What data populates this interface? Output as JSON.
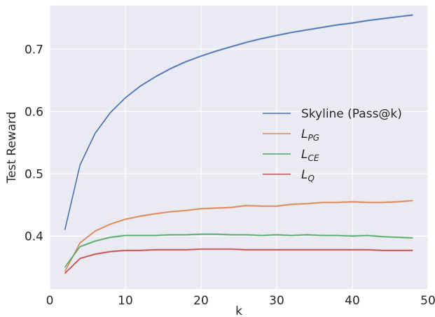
{
  "chart_data": {
    "type": "line",
    "xlabel": "k",
    "ylabel": "Test Reward",
    "xlim": [
      0,
      50
    ],
    "ylim": [
      0.315,
      0.77
    ],
    "x_ticks": [
      0,
      10,
      20,
      30,
      40,
      50
    ],
    "y_ticks": [
      0.4,
      0.5,
      0.6,
      0.7
    ],
    "x_tick_labels": [
      "0",
      "10",
      "20",
      "30",
      "40",
      "50"
    ],
    "y_tick_labels": [
      "0.4",
      "0.5",
      "0.6",
      "0.7"
    ],
    "grid": true,
    "background": "#eaeaf2",
    "legend_position": "center-right",
    "series": [
      {
        "name": "Skyline (Pass@k)",
        "color": "#4c72b0",
        "x": [
          2,
          4,
          6,
          8,
          10,
          12,
          14,
          16,
          18,
          20,
          22,
          24,
          26,
          28,
          30,
          32,
          34,
          36,
          38,
          40,
          42,
          44,
          46,
          48
        ],
        "values": [
          0.41,
          0.514,
          0.565,
          0.598,
          0.622,
          0.641,
          0.656,
          0.669,
          0.68,
          0.689,
          0.697,
          0.704,
          0.711,
          0.717,
          0.722,
          0.727,
          0.731,
          0.735,
          0.739,
          0.742,
          0.746,
          0.749,
          0.752,
          0.755
        ]
      },
      {
        "name_main": "L",
        "name_sub": "PG",
        "color": "#dd8452",
        "x": [
          2,
          4,
          6,
          8,
          10,
          12,
          14,
          16,
          18,
          20,
          22,
          24,
          26,
          28,
          30,
          32,
          34,
          36,
          38,
          40,
          42,
          44,
          46,
          48
        ],
        "values": [
          0.343,
          0.389,
          0.408,
          0.419,
          0.427,
          0.432,
          0.436,
          0.439,
          0.441,
          0.444,
          0.445,
          0.446,
          0.449,
          0.448,
          0.448,
          0.451,
          0.452,
          0.454,
          0.454,
          0.455,
          0.454,
          0.454,
          0.455,
          0.457
        ]
      },
      {
        "name_main": "L",
        "name_sub": "CE",
        "color": "#55a868",
        "x": [
          2,
          4,
          6,
          8,
          10,
          12,
          14,
          16,
          18,
          20,
          22,
          24,
          26,
          28,
          30,
          32,
          34,
          36,
          38,
          40,
          42,
          44,
          46,
          48
        ],
        "values": [
          0.35,
          0.383,
          0.392,
          0.398,
          0.401,
          0.401,
          0.401,
          0.402,
          0.402,
          0.403,
          0.403,
          0.402,
          0.402,
          0.401,
          0.402,
          0.401,
          0.402,
          0.401,
          0.401,
          0.4,
          0.401,
          0.399,
          0.398,
          0.397
        ]
      },
      {
        "name_main": "L",
        "name_sub": "Q",
        "color": "#c44e52",
        "x": [
          2,
          4,
          6,
          8,
          10,
          12,
          14,
          16,
          18,
          20,
          22,
          24,
          26,
          28,
          30,
          32,
          34,
          36,
          38,
          40,
          42,
          44,
          46,
          48
        ],
        "values": [
          0.34,
          0.364,
          0.371,
          0.375,
          0.377,
          0.377,
          0.378,
          0.378,
          0.378,
          0.379,
          0.379,
          0.379,
          0.378,
          0.378,
          0.378,
          0.378,
          0.378,
          0.378,
          0.378,
          0.378,
          0.378,
          0.377,
          0.377,
          0.377
        ]
      }
    ]
  }
}
